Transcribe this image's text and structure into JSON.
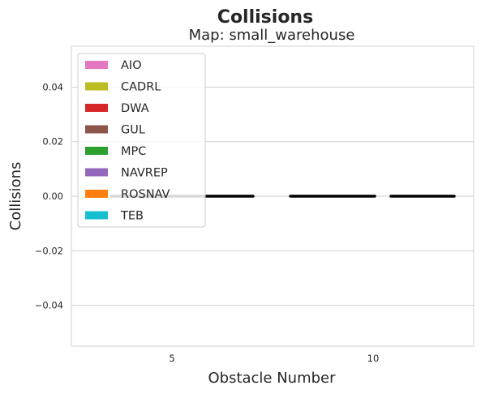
{
  "chart_data": {
    "type": "bar",
    "title": "Collisions",
    "subtitle": "Map: small_warehouse",
    "xlabel": "Obstacle Number",
    "ylabel": "Collisions",
    "categories": [
      "5",
      "10"
    ],
    "ylim": [
      -0.055,
      0.055
    ],
    "yticks": [
      0.04,
      0.02,
      0.0,
      -0.02,
      -0.04
    ],
    "ytick_labels": [
      "0.04",
      "0.02",
      "0.00",
      "−0.02",
      "−0.04"
    ],
    "grid": true,
    "legend_position": "top-left",
    "series": [
      {
        "name": "AIO",
        "color": "#e377c2",
        "values": [
          0,
          0
        ]
      },
      {
        "name": "CADRL",
        "color": "#bcbd22",
        "values": [
          0,
          0
        ]
      },
      {
        "name": "DWA",
        "color": "#d62728",
        "values": [
          0,
          0
        ]
      },
      {
        "name": "GUL",
        "color": "#8c564b",
        "values": [
          0,
          0
        ]
      },
      {
        "name": "MPC",
        "color": "#2ca02c",
        "values": [
          0,
          0
        ]
      },
      {
        "name": "NAVREP",
        "color": "#9467bd",
        "values": [
          0,
          0
        ]
      },
      {
        "name": "ROSNAV",
        "color": "#ff7f0e",
        "values": [
          0,
          0
        ]
      },
      {
        "name": "TEB",
        "color": "#17becf",
        "values": [
          0,
          0
        ]
      }
    ]
  }
}
